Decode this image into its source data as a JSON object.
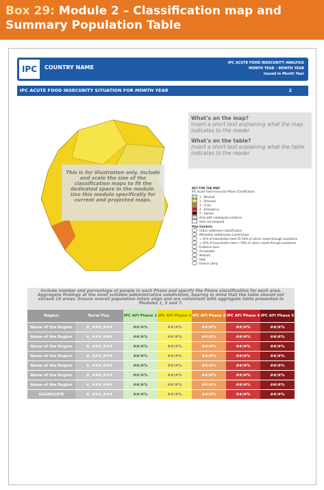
{
  "header": {
    "box": "Box 29:",
    "title": "Module 2 – Classification map and Summary Population Table"
  },
  "banner": {
    "logo": "IPC",
    "country": "COUNTRY NAME",
    "line1": "IPC ACUTE FOOD INSECURITY ANALYSIS",
    "line2": "MONTH YEAR – MONTH YEAR",
    "line3": "Issued in Month Year"
  },
  "section": {
    "title": "IPC ACUTE FOOD INSECURITY SITUATION FOR",
    "title_em": "MONTH YEAR",
    "number": "2"
  },
  "map_note": "This is for illustration only. Include and scale the size of the classification maps to fit the dedicated space in the module. Use this module specifically for current and projected maps.",
  "info": {
    "q1": "What's on the map?",
    "a1": "Insert a short text explaining what the map indicates to the reader",
    "q2": "What's on the table?",
    "a2": "Insert a short text explaining what the table indicates to the reader"
  },
  "legend": {
    "title": "KEY FOR THE MAP",
    "subtitle": "IPC Acute Food Insecurity Phase Classification",
    "items": [
      "1 - Minimal",
      "2 - Stressed",
      "3 - Crisis",
      "4 - Emergency",
      "5 - Famine",
      "Area with inadequate evidence",
      "Area not analysed"
    ],
    "symbols_title": "Map Symbols",
    "symbols": [
      "Urban settlement classification",
      "IDPs/other settlements classification",
      "> 25% of households meet 25-50% of caloric needs through assistance",
      "> 25% of households meet > 50% of caloric needs through assistance",
      "Evidence level",
      "Acceptable",
      "Medium",
      "High",
      "Famine Likely"
    ]
  },
  "table_note": "Include number and percentage of people in each Phase and specify the Phase classification for each area. Aggregate findings at the most suitable administrative subdivision, bearing in mind that the table should not exceed 10 areas. Ensure overall population totals align and are consistent with aggregate table presented in Modules 1, 5 and 7.",
  "table": {
    "headers": [
      "Region",
      "Rural Pop.",
      "IPC AFI Phase 1",
      "IPC AFI Phase 2",
      "IPC AFI Phase 3",
      "IPC AFI Phase 4",
      "IPC AFI Phase 5"
    ],
    "rows": [
      [
        "Name of the Region",
        "#, ###,###",
        "##/#%",
        "##/#%",
        "##/#%",
        "##/#%",
        "##/#%"
      ],
      [
        "Name of the Region",
        "#, ###,###",
        "##/#%",
        "##/#%",
        "##/#%",
        "##/#%",
        "##/#%"
      ],
      [
        "Name of the Region",
        "#, ###,###",
        "##/#%",
        "##/#%",
        "##/#%",
        "##/#%",
        "##/#%"
      ],
      [
        "Name of the Region",
        "#, ###,###",
        "##/#%",
        "##/#%",
        "##/#%",
        "##/#%",
        "##/#%"
      ],
      [
        "Name of the Region",
        "#, ###,###",
        "##/#%",
        "##/#%",
        "##/#%",
        "##/#%",
        "##/#%"
      ],
      [
        "Name of the Region",
        "#, ###,###",
        "##/#%",
        "##/#%",
        "##/#%",
        "##/#%",
        "##/#%"
      ],
      [
        "Name of the Region",
        "#, ###,###",
        "##/#%",
        "##/#%",
        "##/#%",
        "##/#%",
        "##/#%"
      ],
      [
        "AGGREGATE",
        "#, ###,###",
        "##/#%",
        "##/#%",
        "##/#%",
        "##/#%",
        "##/#%"
      ]
    ]
  }
}
